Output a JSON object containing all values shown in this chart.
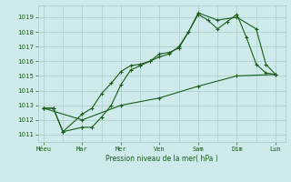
{
  "bg_color": "#ceeaea",
  "grid_color_major": "#a8c8c8",
  "grid_color_minor": "#bcd8d8",
  "line_color": "#1a5c1a",
  "x_labels": [
    "Méeu",
    "Mar",
    "Mer",
    "Ven",
    "Sam",
    "Dim",
    "Lun"
  ],
  "x_positions": [
    0,
    2,
    4,
    6,
    8,
    10,
    12
  ],
  "xlabel": "Pression niveau de la mer( hPa )",
  "ylim": [
    1010.5,
    1019.8
  ],
  "yticks": [
    1011,
    1012,
    1013,
    1014,
    1015,
    1016,
    1017,
    1018,
    1019
  ],
  "series1_x": [
    0,
    0.5,
    1.0,
    2.0,
    2.5,
    3.0,
    3.5,
    4.0,
    4.5,
    5.0,
    5.5,
    6.0,
    6.5,
    7.0,
    7.5,
    8.0,
    8.5,
    9.0,
    9.5,
    10.0,
    10.5,
    11.0,
    11.5,
    12.0
  ],
  "series1_y": [
    1012.8,
    1012.8,
    1011.2,
    1012.4,
    1012.8,
    1013.8,
    1014.5,
    1015.3,
    1015.7,
    1015.8,
    1016.0,
    1016.3,
    1016.5,
    1017.0,
    1018.0,
    1019.2,
    1018.8,
    1018.2,
    1018.7,
    1019.2,
    1017.6,
    1015.8,
    1015.2,
    1015.1
  ],
  "series2_x": [
    0,
    0.5,
    1.0,
    2.0,
    2.5,
    3.0,
    3.5,
    4.0,
    4.5,
    5.0,
    5.5,
    6.0,
    6.5,
    7.0,
    7.5,
    8.0,
    9.0,
    10.0,
    11.0,
    11.5,
    12.0
  ],
  "series2_y": [
    1012.8,
    1012.8,
    1011.2,
    1011.5,
    1011.5,
    1012.2,
    1013.0,
    1014.4,
    1015.4,
    1015.7,
    1016.0,
    1016.5,
    1016.6,
    1016.9,
    1018.0,
    1019.3,
    1018.8,
    1019.0,
    1018.2,
    1015.8,
    1015.1
  ],
  "series3_x": [
    0,
    2,
    4,
    6,
    8,
    10,
    12
  ],
  "series3_y": [
    1012.8,
    1012.0,
    1013.0,
    1013.5,
    1014.3,
    1015.0,
    1015.1
  ],
  "figsize": [
    3.2,
    2.0
  ],
  "dpi": 100
}
